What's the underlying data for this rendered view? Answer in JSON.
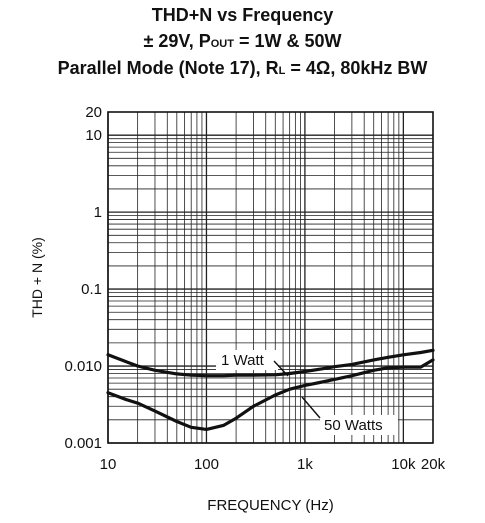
{
  "chart_data": {
    "type": "line",
    "title_line1": "THD+N vs Frequency",
    "title_line2": {
      "prefix": "± 29V, P",
      "sub": "OUT",
      "suffix": " = 1W & 50W"
    },
    "title_line3": {
      "prefix": "Parallel Mode (Note 17), R",
      "sub": "L",
      "suffix": " = 4Ω, 80kHz BW"
    },
    "xlabel": "FREQUENCY (Hz)",
    "ylabel": "THD + N (%)",
    "xscale": "log",
    "yscale": "log",
    "xlim": [
      10,
      20000
    ],
    "ylim": [
      0.001,
      20
    ],
    "grid": true,
    "x_ticks": [
      {
        "value": 10,
        "label": "10"
      },
      {
        "value": 100,
        "label": "100"
      },
      {
        "value": 1000,
        "label": "1k"
      },
      {
        "value": 10000,
        "label": "10k"
      },
      {
        "value": 20000,
        "label": "20k"
      }
    ],
    "y_ticks": [
      {
        "value": 20,
        "label": "20"
      },
      {
        "value": 10,
        "label": "10"
      },
      {
        "value": 1,
        "label": "1"
      },
      {
        "value": 0.1,
        "label": "0.1"
      },
      {
        "value": 0.01,
        "label": "0.010"
      },
      {
        "value": 0.001,
        "label": "0.001"
      }
    ],
    "series": [
      {
        "name": "1 Watt",
        "x": [
          10,
          15,
          20,
          30,
          50,
          70,
          100,
          150,
          200,
          300,
          500,
          700,
          1000,
          1500,
          2000,
          3000,
          5000,
          7000,
          10000,
          15000,
          20000
        ],
        "y": [
          0.014,
          0.0115,
          0.01,
          0.0088,
          0.0079,
          0.0076,
          0.0075,
          0.0075,
          0.0076,
          0.0076,
          0.0077,
          0.008,
          0.0085,
          0.0092,
          0.0098,
          0.0105,
          0.012,
          0.013,
          0.014,
          0.015,
          0.016
        ]
      },
      {
        "name": "50 Watts",
        "x": [
          10,
          15,
          20,
          30,
          50,
          70,
          100,
          150,
          200,
          300,
          500,
          700,
          1000,
          1500,
          2000,
          3000,
          5000,
          7000,
          10000,
          15000,
          20000
        ],
        "y": [
          0.0045,
          0.0037,
          0.0033,
          0.0026,
          0.0019,
          0.0016,
          0.0015,
          0.0017,
          0.0021,
          0.003,
          0.0042,
          0.005,
          0.0056,
          0.0062,
          0.0067,
          0.0075,
          0.0088,
          0.0095,
          0.0097,
          0.0097,
          0.012
        ]
      }
    ]
  }
}
